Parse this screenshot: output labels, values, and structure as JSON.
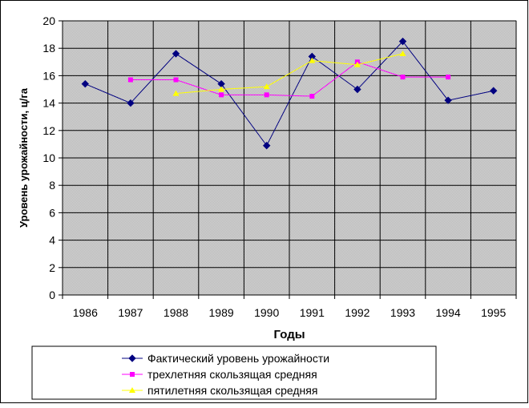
{
  "chart_data": {
    "type": "line",
    "title": "",
    "xlabel": "Годы",
    "ylabel": "Уровень урожайности, ц/га",
    "categories": [
      "1986",
      "1987",
      "1988",
      "1989",
      "1990",
      "1991",
      "1992",
      "1993",
      "1994",
      "1995"
    ],
    "ylim": [
      0,
      20
    ],
    "yticks": [
      "0",
      "2",
      "4",
      "6",
      "8",
      "10",
      "12",
      "14",
      "16",
      "18",
      "20"
    ],
    "grid": true,
    "legend_position": "bottom",
    "series": [
      {
        "name": "Фактический уровень урожайности",
        "values": [
          15.4,
          14.0,
          17.6,
          15.4,
          10.9,
          17.4,
          15.0,
          18.5,
          14.2,
          14.9
        ],
        "color": "#000080",
        "marker": "diamond"
      },
      {
        "name": "трехлетняя скользящая средняя",
        "values": [
          null,
          15.7,
          15.7,
          14.6,
          14.6,
          14.5,
          17.0,
          15.9,
          15.9,
          null
        ],
        "color": "#ff00ff",
        "marker": "square"
      },
      {
        "name": "пятилетняя скользящая средняя",
        "values": [
          null,
          null,
          14.7,
          15.0,
          15.2,
          17.1,
          16.8,
          17.6,
          null,
          null
        ],
        "color": "#ffff00",
        "marker": "triangle"
      }
    ]
  }
}
